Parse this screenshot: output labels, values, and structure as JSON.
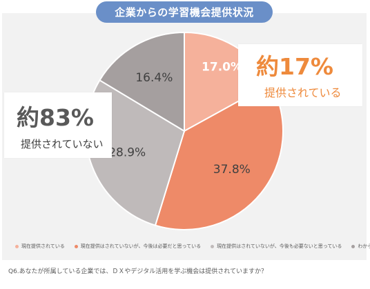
{
  "title": "企業からの学習機会提供状況",
  "chart_data": {
    "type": "pie",
    "start_angle_deg": 0,
    "direction": "clockwise",
    "series": [
      {
        "name": "現在提供されている",
        "value": 17.0,
        "label": "17.0%",
        "color": "#f5b19b",
        "label_color": "#ffffff"
      },
      {
        "name": "現在提供はされていないが、今後は必要だと思っている",
        "value": 37.8,
        "label": "37.8%",
        "color": "#ee8a68",
        "label_color": "#404040"
      },
      {
        "name": "現在提供はされていないが、今後も必要ないと思っている",
        "value": 28.9,
        "label": "28.9%",
        "color": "#bfbaba",
        "label_color": "#404040"
      },
      {
        "name": "わからない",
        "value": 16.4,
        "label": "16.4%",
        "color": "#a59f9f",
        "label_color": "#404040"
      }
    ]
  },
  "callouts": {
    "provided": {
      "big": "約17%",
      "sub": "提供されている",
      "color": "#ee8a3c"
    },
    "not_provided": {
      "big": "約83%",
      "sub": "提供されていない",
      "color": "#595959"
    }
  },
  "footnote": "Q6.あなたが所属している企業では、ＤＸやデジタル活用を学ぶ機会は提供されていますか？"
}
